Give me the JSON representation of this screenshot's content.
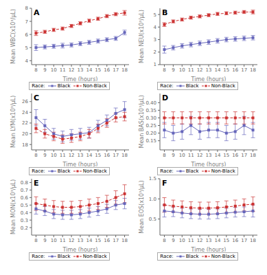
{
  "chart_data": [
    {
      "type": "line",
      "annotation": "A",
      "xlabel": "Time (hours)",
      "ylabel": "Mean WBC(x10³/µL)",
      "x": [
        8,
        9,
        10,
        11,
        12,
        13,
        14,
        15,
        16,
        17,
        18
      ],
      "xlim": [
        7.5,
        18.5
      ],
      "xticks": [
        8,
        9,
        10,
        11,
        12,
        13,
        14,
        15,
        16,
        17,
        18
      ],
      "ylim": [
        3.7,
        8.0
      ],
      "yticks": [
        4,
        5,
        6,
        7,
        8
      ],
      "grid": false,
      "legend": "bottom",
      "legend_title": "Race:",
      "series": [
        {
          "name": "Black",
          "color": "#6666bb",
          "line_style": "solid",
          "marker": "square",
          "values": [
            5.0,
            5.05,
            5.1,
            5.15,
            5.2,
            5.3,
            5.4,
            5.5,
            5.6,
            5.7,
            6.15
          ],
          "errors": [
            0.22,
            0.15,
            0.15,
            0.18,
            0.15,
            0.15,
            0.15,
            0.15,
            0.15,
            0.15,
            0.18
          ]
        },
        {
          "name": "Non-Black",
          "color": "#cc3333",
          "line_style": "dashed",
          "marker": "square",
          "values": [
            6.1,
            6.2,
            6.35,
            6.45,
            6.65,
            6.85,
            7.05,
            7.2,
            7.4,
            7.55,
            7.65
          ],
          "errors": [
            0.18,
            0.12,
            0.12,
            0.12,
            0.12,
            0.12,
            0.12,
            0.12,
            0.12,
            0.12,
            0.18
          ]
        }
      ]
    },
    {
      "type": "line",
      "annotation": "B",
      "xlabel": "Time (hours)",
      "ylabel": "Mean NEU(x10³/µL)",
      "x": [
        8,
        9,
        10,
        11,
        12,
        13,
        14,
        15,
        16,
        17,
        18
      ],
      "xlim": [
        7.5,
        18.5
      ],
      "xticks": [
        8,
        9,
        10,
        11,
        12,
        13,
        14,
        15,
        16,
        17,
        18
      ],
      "ylim": [
        1.0,
        5.5
      ],
      "yticks": [
        1,
        2,
        3,
        4,
        5
      ],
      "grid": false,
      "legend": "bottom",
      "legend_title": "Race:",
      "series": [
        {
          "name": "Black",
          "color": "#6666bb",
          "line_style": "solid",
          "marker": "square",
          "values": [
            2.2,
            2.35,
            2.5,
            2.6,
            2.7,
            2.8,
            2.9,
            3.0,
            3.05,
            3.1,
            3.15
          ],
          "errors": [
            0.28,
            0.18,
            0.18,
            0.18,
            0.18,
            0.18,
            0.18,
            0.18,
            0.18,
            0.18,
            0.18
          ]
        },
        {
          "name": "Non-Black",
          "color": "#cc3333",
          "line_style": "dashed",
          "marker": "square",
          "values": [
            4.2,
            4.45,
            4.6,
            4.75,
            4.85,
            4.95,
            5.05,
            5.1,
            5.15,
            5.2,
            5.2
          ],
          "errors": [
            0.15,
            0.12,
            0.12,
            0.12,
            0.12,
            0.12,
            0.12,
            0.12,
            0.12,
            0.12,
            0.15
          ]
        }
      ]
    },
    {
      "type": "line",
      "annotation": "C",
      "xlabel": "Time (hours)",
      "ylabel": "Mean LYM(x10³/µL)",
      "x": [
        8,
        9,
        10,
        11,
        12,
        13,
        14,
        15,
        16,
        17,
        18
      ],
      "xlim": [
        7.5,
        18.5
      ],
      "xticks": [
        8,
        9,
        10,
        11,
        12,
        13,
        14,
        15,
        16,
        17,
        18
      ],
      "ylim": [
        17.0,
        27.5
      ],
      "yticks": [
        18,
        20,
        22,
        24,
        26
      ],
      "grid": false,
      "legend": "bottom",
      "legend_title": "Race:",
      "series": [
        {
          "name": "Black",
          "color": "#6666bb",
          "line_style": "solid",
          "marker": "square",
          "values": [
            23.0,
            21.5,
            20.0,
            19.5,
            19.8,
            20.0,
            20.2,
            21.5,
            22.5,
            23.8,
            24.5
          ],
          "errors": [
            1.5,
            1.2,
            1.0,
            1.0,
            1.0,
            1.0,
            1.0,
            1.0,
            1.0,
            1.0,
            1.5
          ]
        },
        {
          "name": "Non-Black",
          "color": "#cc3333",
          "line_style": "dashed",
          "marker": "square",
          "values": [
            21.0,
            20.0,
            19.5,
            19.0,
            19.2,
            19.5,
            20.0,
            21.0,
            22.0,
            23.0,
            23.2
          ],
          "errors": [
            0.8,
            0.8,
            0.8,
            0.8,
            0.8,
            0.8,
            0.8,
            0.8,
            0.8,
            0.8,
            0.8
          ]
        }
      ]
    },
    {
      "type": "line",
      "annotation": "D",
      "xlabel": "Time (hours)",
      "ylabel": "Mean BAS(x10³/µL)",
      "x": [
        8,
        9,
        10,
        11,
        12,
        13,
        14,
        15,
        16,
        17,
        18
      ],
      "xlim": [
        7.5,
        18.5
      ],
      "xticks": [
        8,
        9,
        10,
        11,
        12,
        13,
        14,
        15,
        16,
        17,
        18
      ],
      "ylim": [
        0.09,
        0.46
      ],
      "yticks": [
        0.15,
        {
          "value": 0.2,
          "label": "0.20"
        },
        0.25,
        {
          "value": 0.3,
          "label": "0.30"
        },
        0.35,
        {
          "value": 0.4,
          "label": "0.40"
        }
      ],
      "grid": false,
      "legend": "bottom",
      "legend_title": "Race:",
      "series": [
        {
          "name": "Black",
          "color": "#6666bb",
          "line_style": "solid",
          "marker": "square",
          "values": [
            0.22,
            0.2,
            0.21,
            0.25,
            0.21,
            0.22,
            0.22,
            0.2,
            0.21,
            0.25,
            0.22
          ],
          "errors": [
            0.05,
            0.05,
            0.05,
            0.06,
            0.05,
            0.05,
            0.05,
            0.05,
            0.05,
            0.06,
            0.05
          ]
        },
        {
          "name": "Non-Black",
          "color": "#cc3333",
          "line_style": "dashed",
          "marker": "square",
          "values": [
            0.3,
            0.3,
            0.3,
            0.3,
            0.3,
            0.3,
            0.3,
            0.3,
            0.3,
            0.3,
            0.3
          ],
          "errors": [
            0.04,
            0.04,
            0.04,
            0.04,
            0.04,
            0.04,
            0.04,
            0.04,
            0.04,
            0.04,
            0.04
          ]
        }
      ]
    },
    {
      "type": "line",
      "annotation": "E",
      "xlabel": "Time (hours)",
      "ylabel": "Mean MON(x10³/µL)",
      "x": [
        8,
        9,
        10,
        11,
        12,
        13,
        14,
        15,
        16,
        17,
        18
      ],
      "xlim": [
        7.5,
        18.5
      ],
      "xticks": [
        8,
        9,
        10,
        11,
        12,
        13,
        14,
        15,
        16,
        17,
        18
      ],
      "ylim": [
        0.1,
        0.85
      ],
      "yticks": [
        0.2,
        0.3,
        0.4,
        0.5,
        0.6,
        0.7,
        0.8
      ],
      "grid": false,
      "legend": "bottom",
      "legend_title": "Race:",
      "series": [
        {
          "name": "Black",
          "color": "#6666bb",
          "line_style": "solid",
          "marker": "square",
          "values": [
            0.45,
            0.42,
            0.38,
            0.37,
            0.37,
            0.38,
            0.4,
            0.42,
            0.45,
            0.5,
            0.52
          ],
          "errors": [
            0.07,
            0.06,
            0.06,
            0.06,
            0.06,
            0.06,
            0.06,
            0.06,
            0.06,
            0.06,
            0.07
          ]
        },
        {
          "name": "Non-Black",
          "color": "#cc3333",
          "line_style": "dashed",
          "marker": "square",
          "values": [
            0.52,
            0.5,
            0.48,
            0.47,
            0.47,
            0.48,
            0.5,
            0.52,
            0.55,
            0.6,
            0.65
          ],
          "errors": [
            0.09,
            0.08,
            0.08,
            0.08,
            0.08,
            0.08,
            0.08,
            0.08,
            0.08,
            0.09,
            0.12
          ]
        }
      ]
    },
    {
      "type": "line",
      "annotation": "F",
      "xlabel": "Time (hours)",
      "ylabel": "Mean EOS(x10³/µL)",
      "x": [
        8,
        9,
        10,
        11,
        12,
        13,
        14,
        15,
        16,
        17,
        18
      ],
      "xlim": [
        7.5,
        18.5
      ],
      "xticks": [
        8,
        9,
        10,
        11,
        12,
        13,
        14,
        15,
        16,
        17,
        18
      ],
      "ylim": [
        0.1,
        1.5
      ],
      "yticks": [
        0.5,
        {
          "value": 1.0,
          "label": "1.0"
        },
        1.5
      ],
      "grid": false,
      "legend": "bottom",
      "legend_title": "Race:",
      "series": [
        {
          "name": "Black",
          "color": "#6666bb",
          "line_style": "solid",
          "marker": "square",
          "values": [
            0.7,
            0.68,
            0.65,
            0.63,
            0.62,
            0.62,
            0.63,
            0.65,
            0.67,
            0.68,
            0.7
          ],
          "errors": [
            0.15,
            0.12,
            0.12,
            0.12,
            0.12,
            0.12,
            0.12,
            0.12,
            0.12,
            0.12,
            0.15
          ]
        },
        {
          "name": "Non-Black",
          "color": "#cc3333",
          "line_style": "dashed",
          "marker": "square",
          "values": [
            0.85,
            0.82,
            0.8,
            0.78,
            0.77,
            0.77,
            0.78,
            0.8,
            0.82,
            0.85,
            0.87
          ],
          "errors": [
            0.18,
            0.15,
            0.15,
            0.15,
            0.15,
            0.15,
            0.15,
            0.15,
            0.15,
            0.15,
            0.18
          ]
        }
      ]
    }
  ]
}
